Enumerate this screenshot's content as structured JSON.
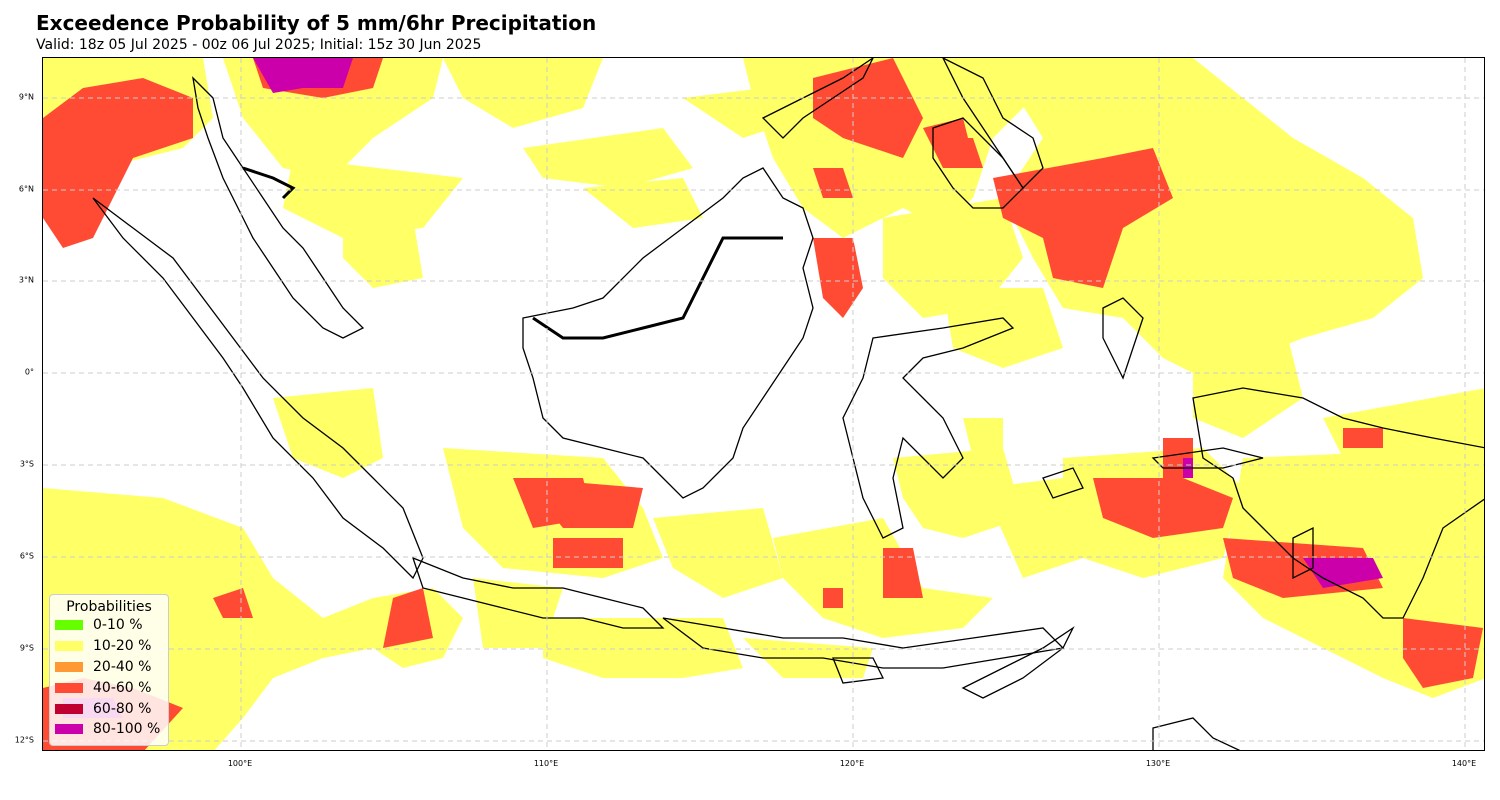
{
  "header": {
    "title": "Exceedence Probability of 5 mm/6hr Precipitation",
    "subtitle": "Valid: 18z 05 Jul 2025 - 00z 06 Jul 2025; Initial: 15z 30 Jun 2025"
  },
  "axes": {
    "lat_ticks": [
      "9°N",
      "6°N",
      "3°N",
      "0°",
      "3°S",
      "6°S",
      "9°S",
      "12°S"
    ],
    "lon_ticks": [
      "100°E",
      "110°E",
      "120°E",
      "130°E",
      "140°E"
    ],
    "grid": true
  },
  "legend": {
    "title": "Probabilities",
    "placement": "lower-left",
    "items": [
      {
        "label": "0-10 %",
        "color": "#66ff00"
      },
      {
        "label": "10-20 %",
        "color": "#ffff66"
      },
      {
        "label": "20-40 %",
        "color": "#ff9933"
      },
      {
        "label": "40-60 %",
        "color": "#ff4b33"
      },
      {
        "label": "60-80 %",
        "color": "#c00030"
      },
      {
        "label": "80-100 %",
        "color": "#cc00aa"
      }
    ]
  },
  "colors": {
    "low": "#ffff66",
    "mid": "#ff4b33",
    "high": "#cc00aa",
    "coast": "#000000",
    "grid": "#cccccc"
  }
}
